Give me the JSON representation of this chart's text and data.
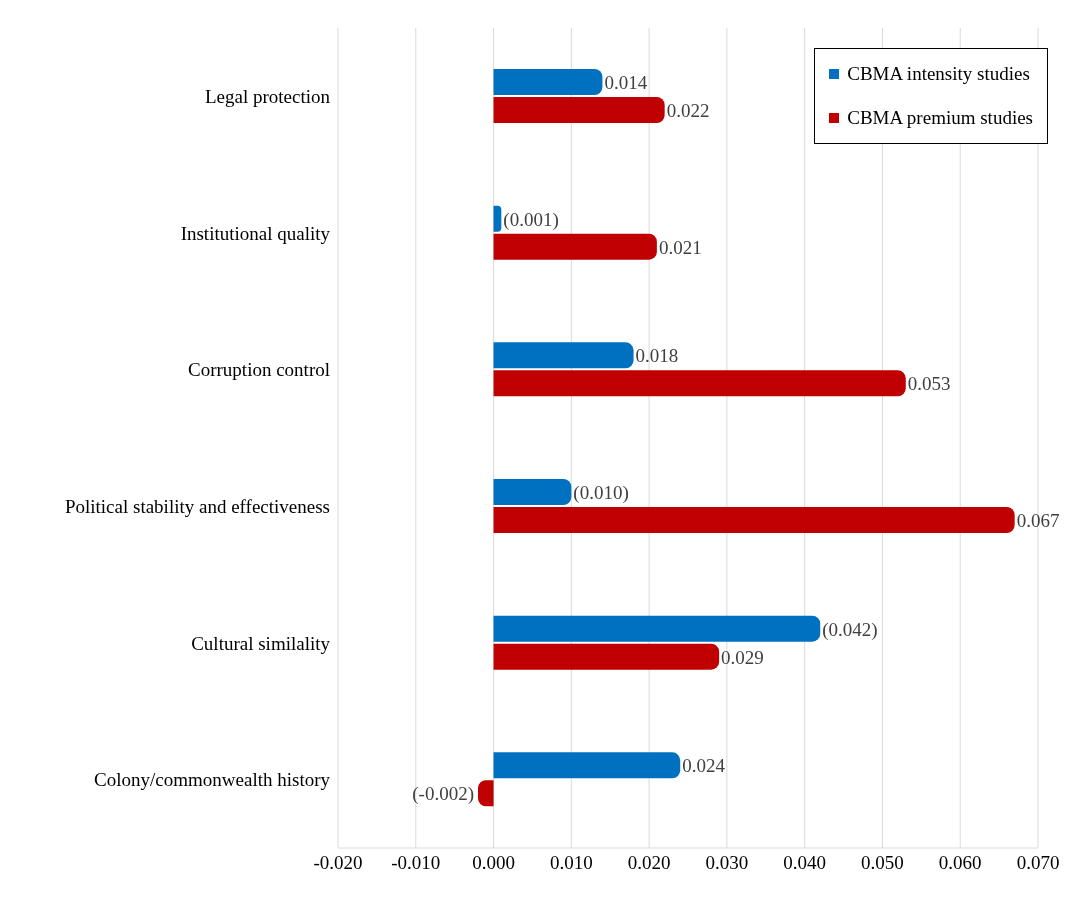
{
  "chart_data": {
    "type": "bar",
    "orientation": "horizontal",
    "categories": [
      "Legal protection",
      "Institutional quality",
      "Corruption control",
      "Political stability and effectiveness",
      "Cultural similality",
      "Colony/commonwealth history"
    ],
    "series": [
      {
        "name": "CBMA intensity studies",
        "color": "#0070c0",
        "values": [
          0.014,
          0.001,
          0.018,
          0.01,
          0.042,
          0.024
        ],
        "value_labels": [
          "0.014",
          "(0.001)",
          "0.018",
          "(0.010)",
          "(0.042)",
          "0.024"
        ]
      },
      {
        "name": "CBMA premium studies",
        "color": "#c00000",
        "values": [
          0.022,
          0.021,
          0.053,
          0.067,
          0.029,
          -0.002
        ],
        "value_labels": [
          "0.022",
          "0.021",
          "0.053",
          "0.067",
          "0.029",
          "(-0.002)"
        ]
      }
    ],
    "xlim": [
      -0.02,
      0.07
    ],
    "xticks": [
      {
        "value": -0.02,
        "label": "-0.020"
      },
      {
        "value": -0.01,
        "label": "-0.010"
      },
      {
        "value": 0,
        "label": "0.000"
      },
      {
        "value": 0.01,
        "label": "0.010"
      },
      {
        "value": 0.02,
        "label": "0.020"
      },
      {
        "value": 0.03,
        "label": "0.030"
      },
      {
        "value": 0.04,
        "label": "0.040"
      },
      {
        "value": 0.05,
        "label": "0.050"
      },
      {
        "value": 0.06,
        "label": "0.060"
      },
      {
        "value": 0.07,
        "label": "0.070"
      }
    ],
    "grid": "x",
    "legend": "top right"
  }
}
